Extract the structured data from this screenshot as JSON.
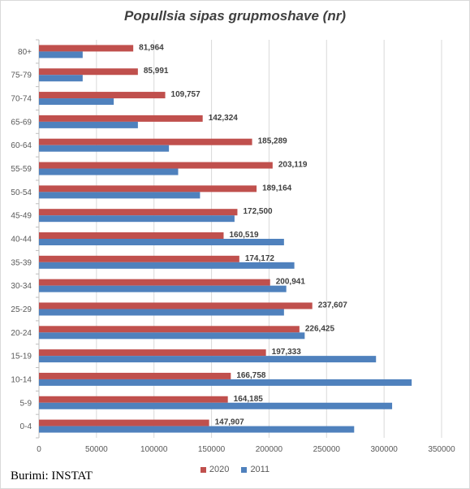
{
  "chart_data": {
    "type": "bar",
    "orientation": "horizontal",
    "title": "Popullsia sipas grupmoshave (nr)",
    "categories": [
      "80+",
      "75-79",
      "70-74",
      "65-69",
      "60-64",
      "55-59",
      "50-54",
      "45-49",
      "40-44",
      "35-39",
      "30-34",
      "25-29",
      "20-24",
      "15-19",
      "10-14",
      "5-9",
      "0-4"
    ],
    "series": [
      {
        "name": "2020",
        "color": "#c0504d",
        "values": [
          81964,
          85991,
          109757,
          142324,
          185289,
          203119,
          189164,
          172500,
          160519,
          174172,
          200941,
          237607,
          226425,
          197333,
          166758,
          164185,
          147907
        ],
        "value_labels": [
          "81,964",
          "85,991",
          "109,757",
          "142,324",
          "185,289",
          "203,119",
          "189,164",
          "172,500",
          "160,519",
          "174,172",
          "200,941",
          "237,607",
          "226,425",
          "197,333",
          "166,758",
          "164,185",
          "147,907"
        ]
      },
      {
        "name": "2011",
        "color": "#4f81bd",
        "values": [
          38000,
          38000,
          65000,
          86000,
          113000,
          121000,
          140000,
          170000,
          213000,
          222000,
          215000,
          213000,
          231000,
          293000,
          324000,
          307000,
          274000
        ]
      }
    ],
    "xlim": [
      0,
      350000
    ],
    "x_ticks": [
      "0",
      "50000",
      "100000",
      "150000",
      "200000",
      "250000",
      "300000",
      "350000"
    ],
    "grid": true,
    "legend_position": "bottom",
    "legend": [
      "2020",
      "2011"
    ]
  },
  "source_note": "Burimi: INSTAT"
}
